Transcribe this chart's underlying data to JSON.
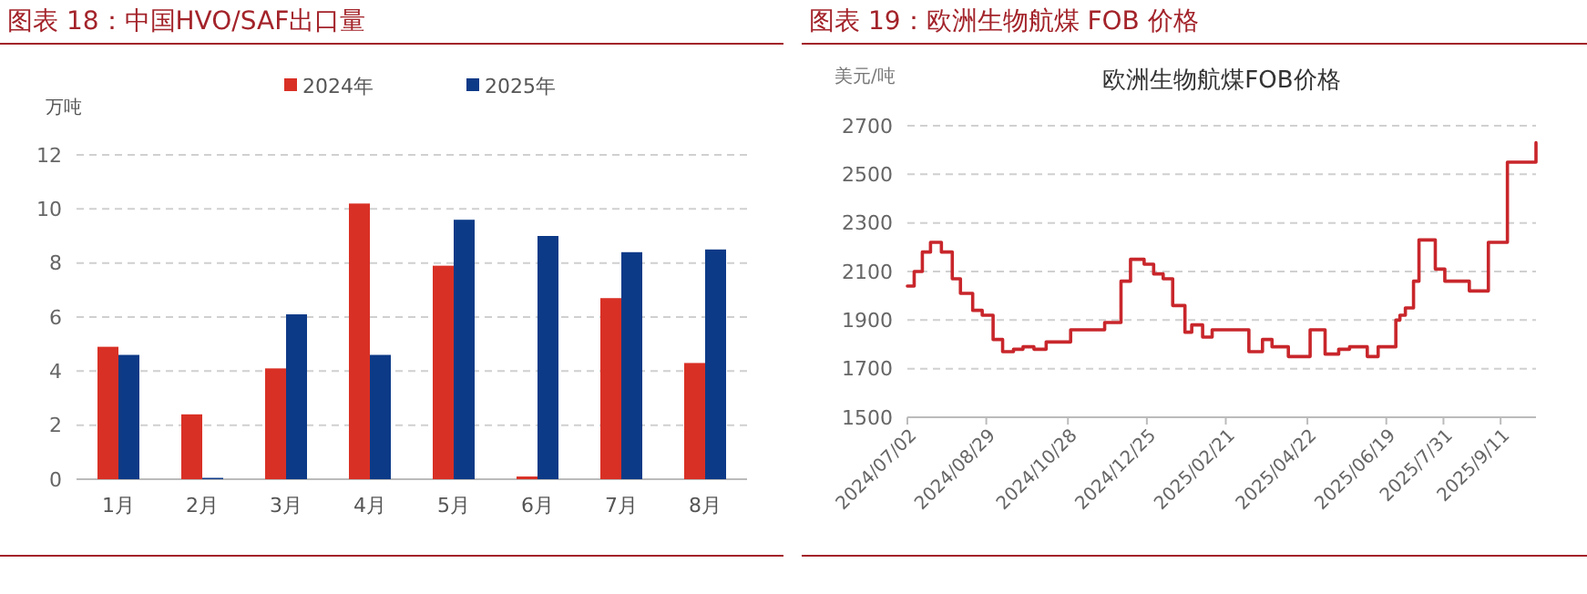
{
  "chart_data": [
    {
      "type": "bar",
      "title": "图表 18：中国HVO/SAF出口量",
      "ylabel": "万吨",
      "categories": [
        "1月",
        "2月",
        "3月",
        "4月",
        "5月",
        "6月",
        "7月",
        "8月"
      ],
      "series": [
        {
          "name": "2024年",
          "color": "#d93025",
          "values": [
            4.9,
            2.4,
            4.1,
            10.2,
            7.9,
            0.1,
            6.7,
            4.3
          ]
        },
        {
          "name": "2025年",
          "color": "#0d3a87",
          "values": [
            4.6,
            0.05,
            6.1,
            4.6,
            9.6,
            9.0,
            8.4,
            8.5
          ]
        }
      ],
      "ylim": [
        0,
        12
      ],
      "yticks": [
        0,
        2,
        4,
        6,
        8,
        10,
        12
      ],
      "grid": "y",
      "legend": "top"
    },
    {
      "type": "step",
      "title": "图表 19：欧洲生物航煤 FOB 价格",
      "subtitle": "欧洲生物航煤FOB价格",
      "ylabel": "美元/吨",
      "color": "#c8262b",
      "line_style": "solid",
      "x": [
        "2024-07-02",
        "2024-07-07",
        "2024-07-13",
        "2024-07-19",
        "2024-07-27",
        "2024-08-04",
        "2024-08-10",
        "2024-08-19",
        "2024-08-26",
        "2024-09-03",
        "2024-09-10",
        "2024-09-18",
        "2024-09-25",
        "2024-10-03",
        "2024-10-12",
        "2024-10-30",
        "2024-11-09",
        "2024-11-24",
        "2024-12-06",
        "2024-12-13",
        "2024-12-23",
        "2024-12-30",
        "2025-01-06",
        "2025-01-13",
        "2025-01-22",
        "2025-01-27",
        "2025-02-04",
        "2025-02-11",
        "2025-03-10",
        "2025-03-20",
        "2025-03-27",
        "2025-04-08",
        "2025-04-24",
        "2025-05-05",
        "2025-05-15",
        "2025-05-23",
        "2025-06-05",
        "2025-06-13",
        "2025-06-26",
        "2025-06-29",
        "2025-07-03",
        "2025-07-09",
        "2025-07-13",
        "2025-07-25",
        "2025-08-01",
        "2025-08-19",
        "2025-09-02",
        "2025-09-16",
        "2025-10-07"
      ],
      "values": [
        2040,
        2100,
        2180,
        2220,
        2180,
        2070,
        2010,
        1940,
        1920,
        1820,
        1770,
        1780,
        1790,
        1780,
        1810,
        1860,
        1860,
        1890,
        2060,
        2150,
        2130,
        2090,
        2070,
        1960,
        1850,
        1880,
        1830,
        1860,
        1770,
        1820,
        1790,
        1750,
        1860,
        1760,
        1780,
        1790,
        1750,
        1790,
        1900,
        1920,
        1950,
        2060,
        2230,
        2110,
        2060,
        2020,
        2220,
        2550,
        2630
      ],
      "xlim": [
        "2024-07-02",
        "2025-10-07"
      ],
      "xticks": [
        {
          "value": "2024-07-02",
          "label": "2024/07/02"
        },
        {
          "value": "2024-08-29",
          "label": "2024/08/29"
        },
        {
          "value": "2024-10-28",
          "label": "2024/10/28"
        },
        {
          "value": "2024-12-25",
          "label": "2024/12/25"
        },
        {
          "value": "2025-02-21",
          "label": "2025/02/21"
        },
        {
          "value": "2025-04-22",
          "label": "2025/04/22"
        },
        {
          "value": "2025-06-19",
          "label": "2025/06/19"
        },
        {
          "value": "2025-07-31",
          "label": "2025/7/31"
        },
        {
          "value": "2025-09-11",
          "label": "2025/9/11"
        }
      ],
      "ylim": [
        1500,
        2700
      ],
      "yticks": [
        1500,
        1700,
        1900,
        2100,
        2300,
        2500,
        2700
      ],
      "grid": "y"
    }
  ]
}
